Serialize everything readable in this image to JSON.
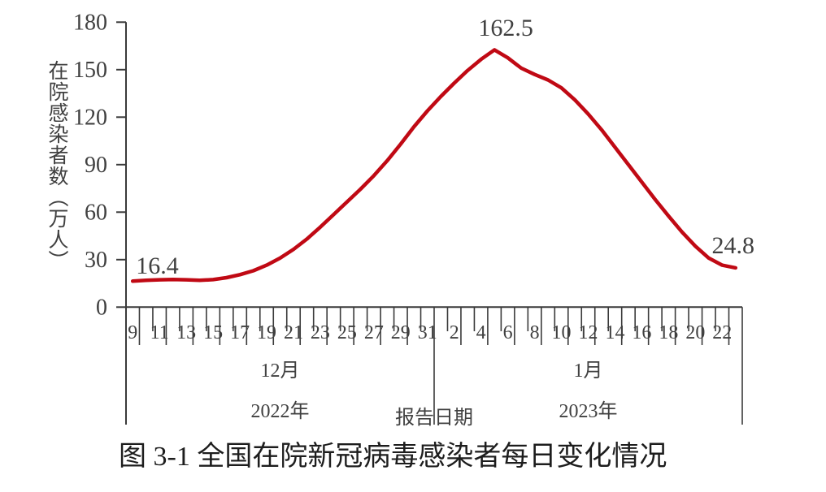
{
  "figure": {
    "caption": "图 3-1 全国在院新冠病毒感染者每日变化情况"
  },
  "chart_data": {
    "type": "line",
    "title": "图 3-1 全国在院新冠病毒感染者每日变化情况",
    "grid": false,
    "legend": "none",
    "y_axis": {
      "label": "在院感染者数（万人）",
      "ticks": [
        0,
        30,
        60,
        90,
        120,
        150,
        180
      ],
      "range": [
        0,
        180
      ]
    },
    "x_axis": {
      "title": "报告日期",
      "groups": [
        {
          "month": "12月",
          "year": "2022年",
          "day_count": 23,
          "first_day": 9,
          "day_labels": [
            "9",
            "11",
            "13",
            "15",
            "17",
            "19",
            "21",
            "23",
            "25",
            "27",
            "29",
            "31"
          ],
          "label_indices": [
            0,
            2,
            4,
            6,
            8,
            10,
            12,
            14,
            16,
            18,
            20,
            22
          ]
        },
        {
          "month": "1月",
          "year": "2023年",
          "day_count": 23,
          "first_day": 1,
          "day_labels": [
            "2",
            "4",
            "6",
            "8",
            "10",
            "12",
            "14",
            "16",
            "18",
            "20",
            "22"
          ],
          "label_indices": [
            24,
            26,
            28,
            30,
            32,
            34,
            36,
            38,
            40,
            42,
            44
          ]
        }
      ]
    },
    "series": [
      {
        "name": "在院感染者数",
        "color": "#C00914",
        "values": [
          16.4,
          16.9,
          17.3,
          17.5,
          17.3,
          16.9,
          17.4,
          18.6,
          20.5,
          23.0,
          26.5,
          31.0,
          36.5,
          43.0,
          50.5,
          58.5,
          66.5,
          74.5,
          83.0,
          92.5,
          103.0,
          114.0,
          124.0,
          133.0,
          141.5,
          149.5,
          156.5,
          162.5,
          157.5,
          151.0,
          147.0,
          143.5,
          138.5,
          131.0,
          122.0,
          112.0,
          101.0,
          90.0,
          79.0,
          68.0,
          57.5,
          47.5,
          38.5,
          31.0,
          26.5,
          24.8
        ]
      }
    ],
    "annotations": [
      {
        "label": "16.4",
        "index": 0,
        "anchor": "start",
        "dx": 4,
        "y": 337
      },
      {
        "label": "162.5",
        "index": 27,
        "anchor": "middle",
        "dx": 14,
        "y": 44
      },
      {
        "label": "24.8",
        "index": 45,
        "anchor": "middle",
        "dx": -3,
        "y": 312
      }
    ],
    "colors": {
      "axis": "#3a3a3a",
      "text": "#404040",
      "line": "#C00914"
    }
  }
}
